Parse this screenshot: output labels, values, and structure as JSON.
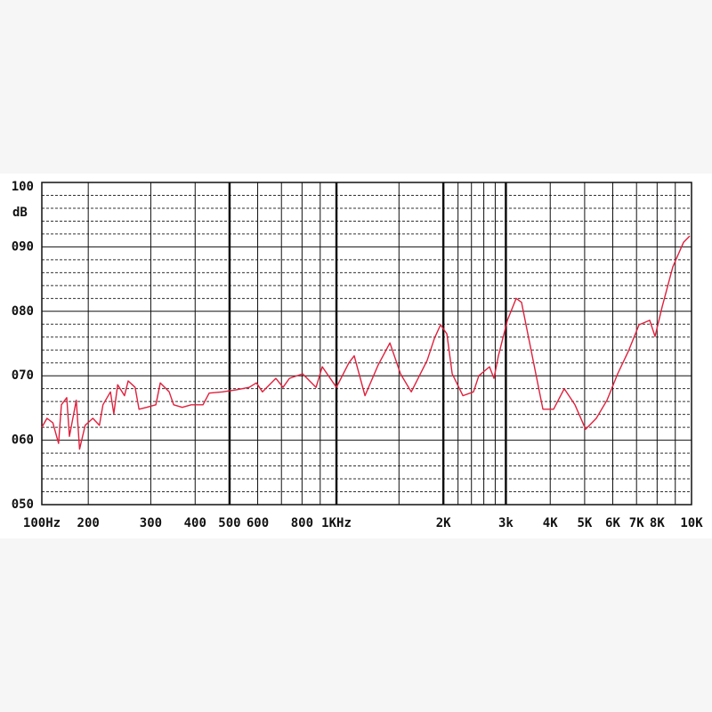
{
  "chart_data": {
    "type": "line",
    "y_label": "dB",
    "x_scale": "log",
    "xlim": [
      148,
      10000
    ],
    "ylim": [
      50,
      100
    ],
    "yticks": [
      {
        "value": 100,
        "label": "100"
      },
      {
        "value": 90,
        "label": "090"
      },
      {
        "value": 80,
        "label": "080"
      },
      {
        "value": 70,
        "label": "070"
      },
      {
        "value": 60,
        "label": "060"
      },
      {
        "value": 50,
        "label": "050"
      }
    ],
    "yminor": [
      52,
      54,
      56,
      58,
      62,
      64,
      66,
      68,
      72,
      74,
      76,
      78,
      82,
      84,
      86,
      88,
      92,
      94,
      96,
      98
    ],
    "xticks": [
      {
        "value": 100,
        "label": "100Hz"
      },
      200,
      300,
      400,
      500,
      600,
      800,
      {
        "value": 1000,
        "label": "1KHz"
      },
      {
        "value": 2000,
        "label": "2K"
      },
      {
        "value": 3000,
        "label": "3k"
      },
      {
        "value": 4000,
        "label": "4K"
      },
      {
        "value": 5000,
        "label": "5K"
      },
      {
        "value": 6000,
        "label": "6K"
      },
      {
        "value": 7000,
        "label": "7K"
      },
      {
        "value": 8000,
        "label": "8K"
      },
      {
        "value": 10000,
        "label": "10K"
      }
    ],
    "xgrid": [
      200,
      300,
      400,
      500,
      600,
      700,
      800,
      900,
      1000,
      1500,
      2000,
      2200,
      2400,
      2600,
      2800,
      3000,
      4000,
      5000,
      6000,
      7000,
      8000,
      9000
    ],
    "xgrid_major": [
      500,
      1000,
      2000,
      3000
    ],
    "grid": true,
    "series": [
      {
        "color": "#e0203c",
        "x": [
          148,
          153,
          159,
          165,
          168,
          174,
          177,
          185,
          189,
          196,
          206,
          215,
          220,
          231,
          236,
          242,
          253,
          259,
          271,
          278,
          292,
          310,
          319,
          338,
          348,
          368,
          390,
          421,
          438,
          478,
          521,
          568,
          595,
          619,
          675,
          707,
          737,
          803,
          876,
          912,
          1000,
          1084,
          1122,
          1203,
          1311,
          1414,
          1515,
          1624,
          1801,
          1887,
          1964,
          2046,
          2118,
          2270,
          2432,
          2518,
          2698,
          2777,
          2858,
          3029,
          3208,
          3321,
          3560,
          3815,
          4088,
          4380,
          4696,
          5032,
          5392,
          5781,
          6194,
          6638,
          7115,
          7624,
          7892,
          8268,
          8859,
          9493,
          9886
        ],
        "values": [
          62.0,
          63.4,
          62.7,
          59.5,
          65.5,
          66.6,
          60.6,
          66.2,
          58.6,
          62.3,
          63.4,
          62.3,
          65.5,
          67.5,
          64.1,
          68.6,
          66.9,
          69.2,
          68.2,
          64.8,
          65.1,
          65.5,
          68.9,
          67.5,
          65.5,
          65.1,
          65.5,
          65.5,
          67.3,
          67.5,
          67.8,
          68.2,
          68.9,
          67.5,
          69.6,
          68.2,
          69.6,
          70.3,
          68.2,
          71.4,
          68.2,
          72.0,
          73.1,
          66.9,
          71.7,
          75.1,
          70.3,
          67.5,
          72.4,
          75.8,
          77.9,
          76.5,
          70.3,
          66.9,
          67.5,
          70.0,
          71.4,
          69.6,
          73.1,
          78.6,
          82.0,
          81.4,
          73.1,
          64.8,
          64.8,
          68.0,
          65.5,
          61.7,
          63.4,
          66.2,
          70.3,
          73.8,
          77.9,
          78.6,
          76.1,
          80.7,
          86.9,
          90.7,
          91.7
        ]
      }
    ]
  }
}
